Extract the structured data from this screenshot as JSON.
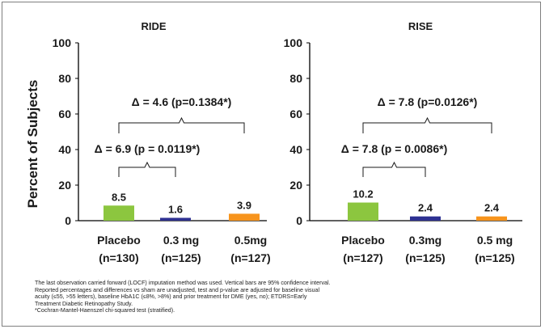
{
  "ylabel": "Percent of Subjects",
  "footnotes": [
    "The last observation carried forward (LOCF) imputation method was used. Vertical bars are 95% confidence interval.",
    "Reported percentages and differences vs sham are unadjusted, test and p-value are adjusted for baseline visual",
    "acuity (≤55, >55 letters), baseline HbA1C (≤8%, >8%) and prior treatment for DME (yes, no); ETDRS=Early",
    "Treatment Diabetic Retinopathy Study.",
    "*Cochran-Mantel-Haenszel chi-squared test (stratified)."
  ],
  "chart_data": [
    {
      "type": "bar",
      "title": "RIDE",
      "categories": [
        "Placebo",
        "0.3 mg",
        "0.5mg"
      ],
      "category_n": [
        "(n=130)",
        "(n=125)",
        "(n=127)"
      ],
      "values": [
        8.5,
        1.6,
        3.9
      ],
      "value_labels": [
        "8.5",
        "1.6",
        "3.9"
      ],
      "colors": [
        "#8cc63f",
        "#2e3192",
        "#f7941d"
      ],
      "ylim": [
        0,
        100
      ],
      "yticks": [
        "0",
        "20",
        "40",
        "60",
        "80",
        "100"
      ],
      "grid": false,
      "annotations": [
        {
          "text": "Δ = 4.6 (p=0.1384*)",
          "from": 0,
          "to": 2
        },
        {
          "text": "Δ = 6.9 (p = 0.0119*)",
          "from": 0,
          "to": 1
        }
      ]
    },
    {
      "type": "bar",
      "title": "RISE",
      "categories": [
        "Placebo",
        "0.3mg",
        "0.5 mg"
      ],
      "category_n": [
        "(n=127)",
        "(n=125)",
        "(n=125)"
      ],
      "values": [
        10.2,
        2.4,
        2.4
      ],
      "value_labels": [
        "10.2",
        "2.4",
        "2.4"
      ],
      "colors": [
        "#8cc63f",
        "#2e3192",
        "#f7941d"
      ],
      "ylim": [
        0,
        100
      ],
      "yticks": [
        "0",
        "20",
        "40",
        "60",
        "80",
        "100"
      ],
      "grid": false,
      "annotations": [
        {
          "text": "Δ = 7.8 (p=0.0126*)",
          "from": 0,
          "to": 2
        },
        {
          "text": "Δ = 7.8 (p = 0.0086*)",
          "from": 0,
          "to": 1
        }
      ]
    }
  ]
}
